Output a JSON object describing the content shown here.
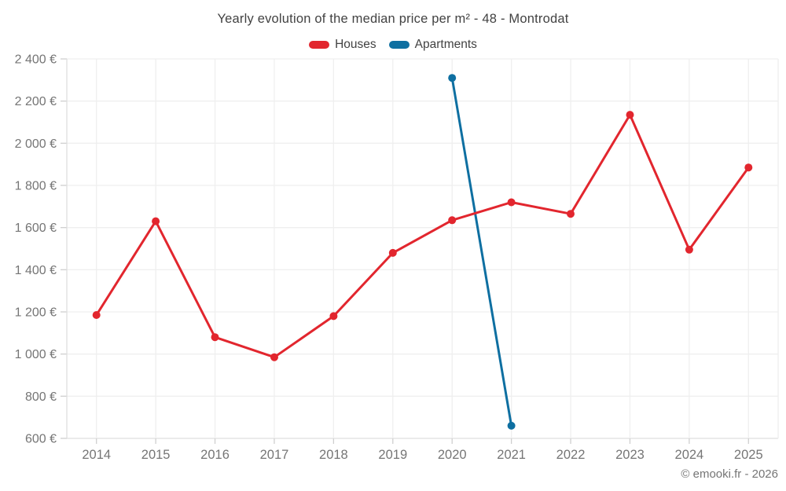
{
  "page": {
    "footer": "© emooki.fr - 2026"
  },
  "colors": {
    "houses": "#e2262e",
    "apartments": "#0e6fa1",
    "title_text": "#424242",
    "axis_text": "#757575",
    "grid_line": "#efefef",
    "axis_line": "#dfdfdf",
    "tick_mark": "#cfcfcf",
    "background": "#ffffff"
  },
  "chart_data": {
    "type": "line",
    "title": "Yearly evolution of the median price per m² - 48 - Montrodat",
    "categories": [
      "2014",
      "2015",
      "2016",
      "2017",
      "2018",
      "2019",
      "2020",
      "2021",
      "2022",
      "2023",
      "2024",
      "2025"
    ],
    "series": [
      {
        "name": "Houses",
        "color": "#e2262e",
        "values": [
          1185,
          1630,
          1080,
          985,
          1180,
          1480,
          1635,
          1720,
          1665,
          2135,
          1495,
          1885
        ]
      },
      {
        "name": "Apartments",
        "color": "#0e6fa1",
        "values": [
          null,
          null,
          null,
          null,
          null,
          null,
          2310,
          660,
          null,
          null,
          null,
          null
        ]
      }
    ],
    "ylim": [
      600,
      2400
    ],
    "y_ticks": [
      {
        "value": 600,
        "label": "600 €"
      },
      {
        "value": 800,
        "label": "800 €"
      },
      {
        "value": 1000,
        "label": "1 000 €"
      },
      {
        "value": 1200,
        "label": "1 200 €"
      },
      {
        "value": 1400,
        "label": "1 400 €"
      },
      {
        "value": 1600,
        "label": "1 600 €"
      },
      {
        "value": 1800,
        "label": "1 800 €"
      },
      {
        "value": 2000,
        "label": "2 000 €"
      },
      {
        "value": 2200,
        "label": "2 200 €"
      },
      {
        "value": 2400,
        "label": "2 400 €"
      }
    ],
    "grid": true,
    "legend_position": "top",
    "currency_suffix": "€"
  }
}
